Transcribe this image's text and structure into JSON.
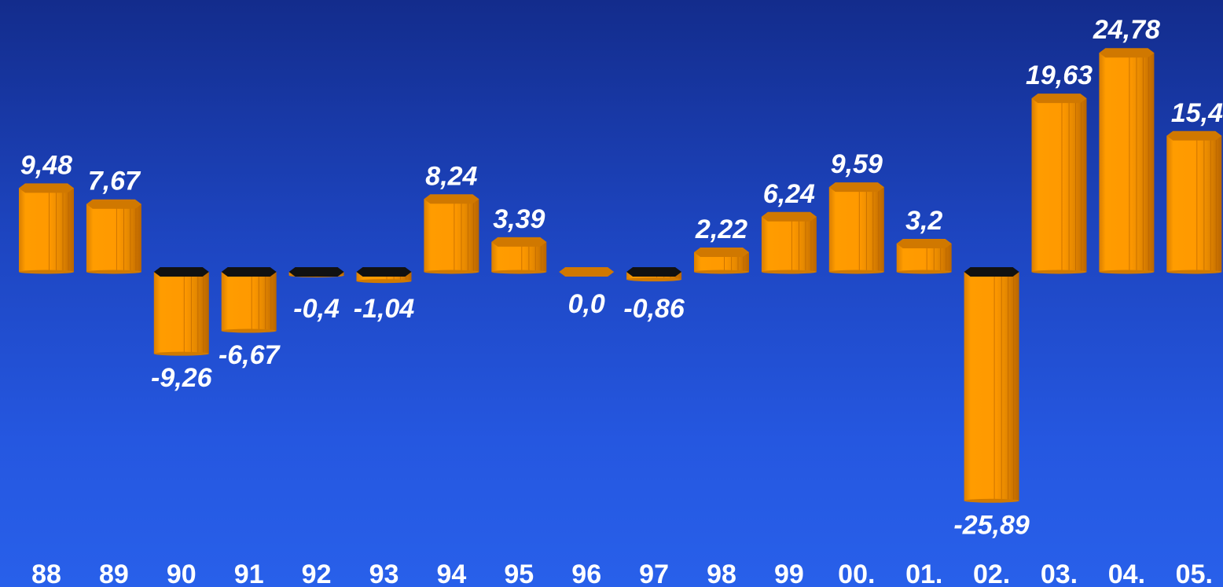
{
  "chart_data": {
    "type": "bar",
    "categories": [
      "88",
      "89",
      "90",
      "91",
      "92",
      "93",
      "94",
      "95",
      "96",
      "97",
      "98",
      "99",
      "00.",
      "01.",
      "02.",
      "03.",
      "04.",
      "05."
    ],
    "values": [
      9.48,
      7.67,
      -9.26,
      -6.67,
      -0.4,
      -1.04,
      8.24,
      3.39,
      0.0,
      -0.86,
      2.22,
      6.24,
      9.59,
      3.2,
      -25.89,
      19.63,
      24.78,
      15.4
    ],
    "data_labels": [
      "9,48",
      "7,67",
      "-9,26",
      "-6,67",
      "-0,4",
      "-1,04",
      "8,24",
      "3,39",
      "0,0",
      "-0,86",
      "2,22",
      "6,24",
      "9,59",
      "3,2",
      "-25,89",
      "19,63",
      "24,78",
      "15,4"
    ],
    "title": "",
    "xlabel": "",
    "ylabel": "",
    "ylim": [
      -26,
      26
    ],
    "grid": false,
    "legend": "none",
    "colors": {
      "bar": "#ff9a00",
      "bar_dark": "#c96f00",
      "bar_top": "#d07800",
      "neg_top": "#111111",
      "text": "#ffffff"
    }
  }
}
